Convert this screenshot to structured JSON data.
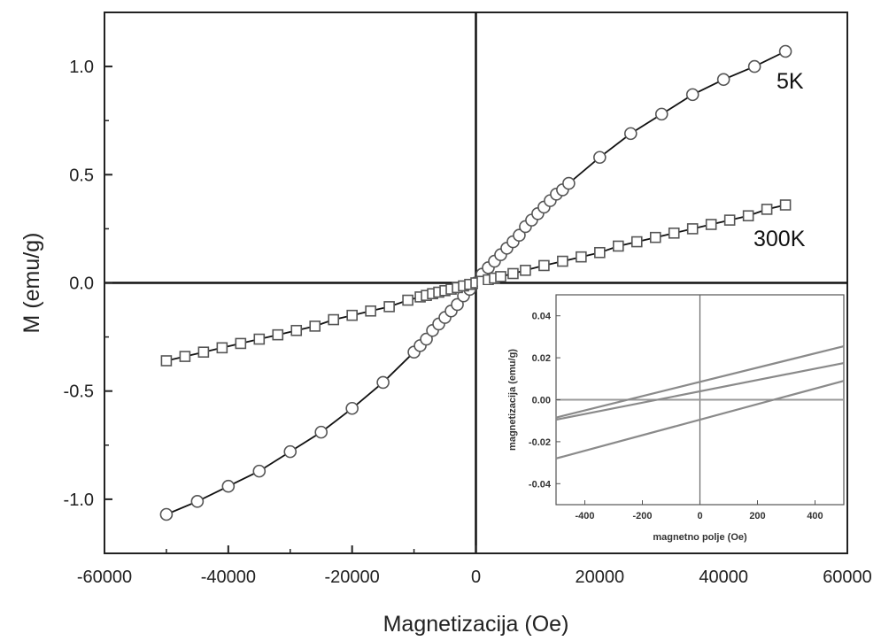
{
  "chart_data": [
    {
      "type": "line",
      "xlabel": "Magnetizacija (Oe)",
      "ylabel": "M (emu/g)",
      "xlim": [
        -60000,
        60000
      ],
      "ylim": [
        -1.25,
        1.25
      ],
      "xticks": [
        -60000,
        -40000,
        -20000,
        0,
        20000,
        40000,
        60000
      ],
      "xtick_labels": [
        "-60000",
        "-40000",
        "-20000",
        "0",
        "20000",
        "40000",
        "60000"
      ],
      "yticks": [
        -1.0,
        -0.5,
        0.0,
        0.5,
        1.0
      ],
      "ytick_labels": [
        "-1.0",
        "-0.5",
        "0.0",
        "0.5",
        "1.0"
      ],
      "grid": false,
      "series": [
        {
          "name": "5K",
          "marker": "circle",
          "x": [
            -50000,
            -45000,
            -40000,
            -35000,
            -30000,
            -25000,
            -20000,
            -15000,
            -10000,
            -9000,
            -8000,
            -7000,
            -6000,
            -5000,
            -4000,
            -3000,
            -2000,
            -1000,
            0,
            1000,
            2000,
            3000,
            4000,
            5000,
            6000,
            7000,
            8000,
            9000,
            10000,
            11000,
            12000,
            13000,
            14000,
            15000,
            20000,
            25000,
            30000,
            35000,
            40000,
            45000,
            50000
          ],
          "y": [
            -1.07,
            -1.01,
            -0.94,
            -0.87,
            -0.78,
            -0.69,
            -0.58,
            -0.46,
            -0.32,
            -0.29,
            -0.26,
            -0.22,
            -0.19,
            -0.16,
            -0.13,
            -0.1,
            -0.06,
            -0.03,
            0.0,
            0.04,
            0.07,
            0.1,
            0.13,
            0.16,
            0.19,
            0.22,
            0.26,
            0.29,
            0.32,
            0.35,
            0.38,
            0.41,
            0.43,
            0.46,
            0.58,
            0.69,
            0.78,
            0.87,
            0.94,
            1.0,
            1.07
          ]
        },
        {
          "name": "300K",
          "marker": "square",
          "x": [
            -50000,
            -47000,
            -44000,
            -41000,
            -38000,
            -35000,
            -32000,
            -29000,
            -26000,
            -23000,
            -20000,
            -17000,
            -14000,
            -11000,
            -9000,
            -8000,
            -7000,
            -6000,
            -5000,
            -4000,
            -3000,
            -2000,
            -1000,
            0,
            1000,
            2000,
            3000,
            4000,
            6000,
            8000,
            11000,
            14000,
            17000,
            20000,
            23000,
            26000,
            29000,
            32000,
            35000,
            38000,
            41000,
            44000,
            47000,
            50000
          ],
          "y": [
            -0.36,
            -0.34,
            -0.32,
            -0.3,
            -0.28,
            -0.26,
            -0.24,
            -0.22,
            -0.2,
            -0.17,
            -0.15,
            -0.13,
            -0.11,
            -0.08,
            -0.065,
            -0.058,
            -0.05,
            -0.043,
            -0.036,
            -0.029,
            -0.022,
            -0.014,
            -0.007,
            0.0,
            0.007,
            0.014,
            0.022,
            0.029,
            0.043,
            0.058,
            0.08,
            0.1,
            0.12,
            0.14,
            0.17,
            0.19,
            0.21,
            0.23,
            0.25,
            0.27,
            0.29,
            0.31,
            0.34,
            0.36
          ]
        }
      ],
      "annotations": [
        "5K",
        "300K"
      ]
    },
    {
      "type": "line",
      "xlabel": "magnetno polje (Oe)",
      "ylabel": "magnetizacija (emu/g)",
      "xlim": [
        -500,
        500
      ],
      "ylim": [
        -0.05,
        0.05
      ],
      "xticks": [
        -400,
        -200,
        0,
        200,
        400
      ],
      "xtick_labels": [
        "-400",
        "-200",
        "0",
        "200",
        "400"
      ],
      "yticks": [
        -0.04,
        -0.02,
        0.0,
        0.02,
        0.04
      ],
      "ytick_labels": [
        "-0.04",
        "-0.02",
        "0.00",
        "0.02",
        "0.04"
      ],
      "grid": false,
      "series": [
        {
          "x": [
            -500,
            500
          ],
          "y": [
            -0.0085,
            0.0255
          ]
        },
        {
          "x": [
            -500,
            500
          ],
          "y": [
            -0.0095,
            0.0175
          ]
        },
        {
          "x": [
            -500,
            500
          ],
          "y": [
            -0.028,
            0.009
          ]
        }
      ]
    }
  ]
}
